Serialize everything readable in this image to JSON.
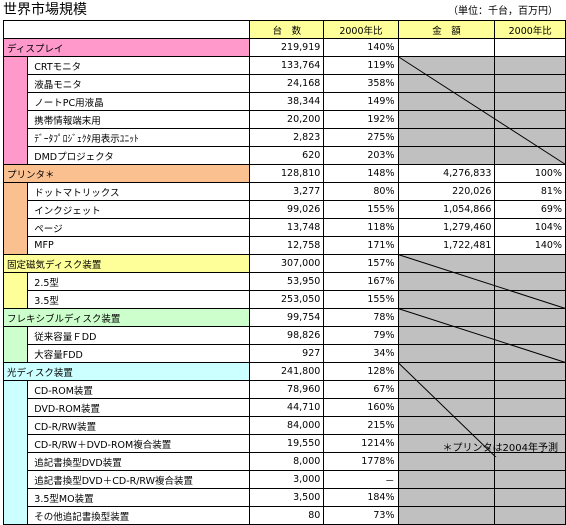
{
  "title": "世界市場規模",
  "unit_note": "（単位：千台，百万円）",
  "footnote": "＊プリンタは2004年予測",
  "headers": {
    "units": "台　数",
    "units_ratio": "2000年比",
    "amount": "金　額",
    "amount_ratio": "2000年比"
  },
  "colors": {
    "pink": "#ff99cc",
    "orange": "#fac090",
    "yellow": "#ffff99",
    "green": "#ccffcc",
    "cyan": "#ccffff",
    "shade": "#c0c0c0"
  },
  "rows": [
    {
      "label": "ディスプレイ",
      "type": "cat",
      "color": "pink",
      "units": "219,919",
      "ratio": "140%",
      "amount": "",
      "aratio": "",
      "shade": false
    },
    {
      "label": "CRTモニタ",
      "type": "sub",
      "color": "pink",
      "units": "133,764",
      "ratio": "119%",
      "amount": "",
      "aratio": "",
      "shade": true
    },
    {
      "label": "液晶モニタ",
      "type": "sub",
      "color": "pink",
      "units": "24,168",
      "ratio": "358%",
      "amount": "",
      "aratio": "",
      "shade": true
    },
    {
      "label": "ノートPC用液晶",
      "type": "sub",
      "color": "pink",
      "units": "38,344",
      "ratio": "149%",
      "amount": "",
      "aratio": "",
      "shade": true
    },
    {
      "label": "携帯情報端末用",
      "type": "sub",
      "color": "pink",
      "units": "20,200",
      "ratio": "192%",
      "amount": "",
      "aratio": "",
      "shade": true
    },
    {
      "label": "ﾃﾞｰﾀﾌﾟﾛｼﾞｪｸﾀ用表示ﾕﾆｯﾄ",
      "type": "sub",
      "color": "pink",
      "units": "2,823",
      "ratio": "275%",
      "amount": "",
      "aratio": "",
      "shade": true
    },
    {
      "label": "DMDプロジェクタ",
      "type": "sub",
      "color": "pink",
      "units": "620",
      "ratio": "203%",
      "amount": "",
      "aratio": "",
      "shade": true
    },
    {
      "label": "プリンタ＊",
      "type": "cat",
      "color": "orange",
      "units": "128,810",
      "ratio": "148%",
      "amount": "4,276,833",
      "aratio": "100%",
      "shade": false
    },
    {
      "label": "ドットマトリックス",
      "type": "sub",
      "color": "orange",
      "units": "3,277",
      "ratio": "80%",
      "amount": "220,026",
      "aratio": "81%",
      "shade": false
    },
    {
      "label": "インクジェット",
      "type": "sub",
      "color": "orange",
      "units": "99,026",
      "ratio": "155%",
      "amount": "1,054,866",
      "aratio": "69%",
      "shade": false
    },
    {
      "label": "ページ",
      "type": "sub",
      "color": "orange",
      "units": "13,748",
      "ratio": "118%",
      "amount": "1,279,460",
      "aratio": "104%",
      "shade": false
    },
    {
      "label": "MFP",
      "type": "sub",
      "color": "orange",
      "units": "12,758",
      "ratio": "171%",
      "amount": "1,722,481",
      "aratio": "140%",
      "shade": false
    },
    {
      "label": "固定磁気ディスク装置",
      "type": "cat",
      "color": "yellow",
      "units": "307,000",
      "ratio": "157%",
      "amount": "",
      "aratio": "",
      "shade": true
    },
    {
      "label": "2.5型",
      "type": "sub",
      "color": "yellow",
      "units": "53,950",
      "ratio": "167%",
      "amount": "",
      "aratio": "",
      "shade": true
    },
    {
      "label": "3.5型",
      "type": "sub",
      "color": "yellow",
      "units": "253,050",
      "ratio": "155%",
      "amount": "",
      "aratio": "",
      "shade": true
    },
    {
      "label": "フレキシブルディスク装置",
      "type": "cat",
      "color": "green",
      "units": "99,754",
      "ratio": "78%",
      "amount": "",
      "aratio": "",
      "shade": true
    },
    {
      "label": "従来容量ＦDD",
      "type": "sub",
      "color": "green",
      "units": "98,826",
      "ratio": "79%",
      "amount": "",
      "aratio": "",
      "shade": true
    },
    {
      "label": "大容量FDD",
      "type": "sub",
      "color": "green",
      "units": "927",
      "ratio": "34%",
      "amount": "",
      "aratio": "",
      "shade": true
    },
    {
      "label": "光ディスク装置",
      "type": "cat",
      "color": "cyan",
      "units": "241,800",
      "ratio": "128%",
      "amount": "",
      "aratio": "",
      "shade": true
    },
    {
      "label": "CD-ROM装置",
      "type": "sub",
      "color": "cyan",
      "units": "78,960",
      "ratio": "67%",
      "amount": "",
      "aratio": "",
      "shade": true
    },
    {
      "label": "DVD-ROM装置",
      "type": "sub",
      "color": "cyan",
      "units": "44,710",
      "ratio": "160%",
      "amount": "",
      "aratio": "",
      "shade": true
    },
    {
      "label": "CD-R/RW装置",
      "type": "sub",
      "color": "cyan",
      "units": "84,000",
      "ratio": "215%",
      "amount": "",
      "aratio": "",
      "shade": true
    },
    {
      "label": "CD-R/RW＋DVD-ROM複合装置",
      "type": "sub",
      "color": "cyan",
      "units": "19,550",
      "ratio": "1214%",
      "amount": "",
      "aratio": "",
      "shade": true
    },
    {
      "label": "追記書換型DVD装置",
      "type": "sub",
      "color": "cyan",
      "units": "8,000",
      "ratio": "1778%",
      "amount": "",
      "aratio": "",
      "shade": true
    },
    {
      "label": "追記書換型DVD＋CD-R/RW複合装置",
      "type": "sub",
      "color": "cyan",
      "units": "3,000",
      "ratio": "－",
      "amount": "",
      "aratio": "",
      "shade": true
    },
    {
      "label": "3.5型MO装置",
      "type": "sub",
      "color": "cyan",
      "units": "3,500",
      "ratio": "184%",
      "amount": "",
      "aratio": "",
      "shade": true
    },
    {
      "label": "その他追記書換型装置",
      "type": "sub",
      "color": "cyan",
      "units": "80",
      "ratio": "73%",
      "amount": "",
      "aratio": "",
      "shade": true
    }
  ]
}
